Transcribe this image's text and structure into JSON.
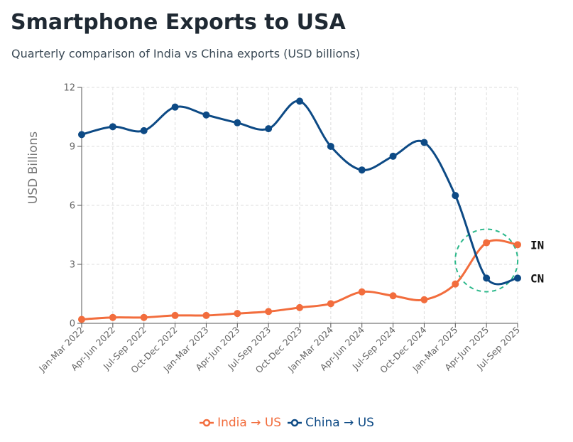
{
  "title": "Smartphone Exports to USA",
  "subtitle": "Quarterly comparison of India vs China exports (USD billions)",
  "colors": {
    "india": "#f26d3d",
    "china": "#0d4a85",
    "highlight": "#2bb88a",
    "grid": "#dddddd"
  },
  "chart_data": {
    "type": "line",
    "ylabel": "USD Billions",
    "xlabel": "",
    "ylim": [
      0,
      12
    ],
    "yticks": [
      0,
      3,
      6,
      9,
      12
    ],
    "grid": true,
    "legend_position": "bottom",
    "categories": [
      "Jan-Mar 2022",
      "Apr-Jun 2022",
      "Jul-Sep 2022",
      "Oct-Dec 2022",
      "Jan-Mar 2023",
      "Apr-Jun 2023",
      "Jul-Sep 2023",
      "Oct-Dec 2023",
      "Jan-Mar 2024",
      "Apr-Jun 2024",
      "Jul-Sep 2024",
      "Oct-Dec 2024",
      "Jan-Mar 2025",
      "Apr-Jun 2025",
      "Jul-Sep 2025"
    ],
    "series": [
      {
        "name": "India → US",
        "key": "india",
        "end_label": "IN",
        "values": [
          0.2,
          0.3,
          0.3,
          0.4,
          0.4,
          0.5,
          0.6,
          0.8,
          1.0,
          1.6,
          1.4,
          1.2,
          2.0,
          4.1,
          4.0
        ]
      },
      {
        "name": "China → US",
        "key": "china",
        "end_label": "CN",
        "values": [
          9.6,
          10.0,
          9.8,
          11.0,
          10.6,
          10.2,
          9.9,
          11.3,
          9.0,
          7.8,
          8.5,
          9.2,
          6.5,
          2.3,
          2.3
        ]
      }
    ],
    "annotations": [
      {
        "type": "circle",
        "category": "Apr-Jun 2025",
        "y": 3.2,
        "style": "dashed"
      }
    ]
  }
}
